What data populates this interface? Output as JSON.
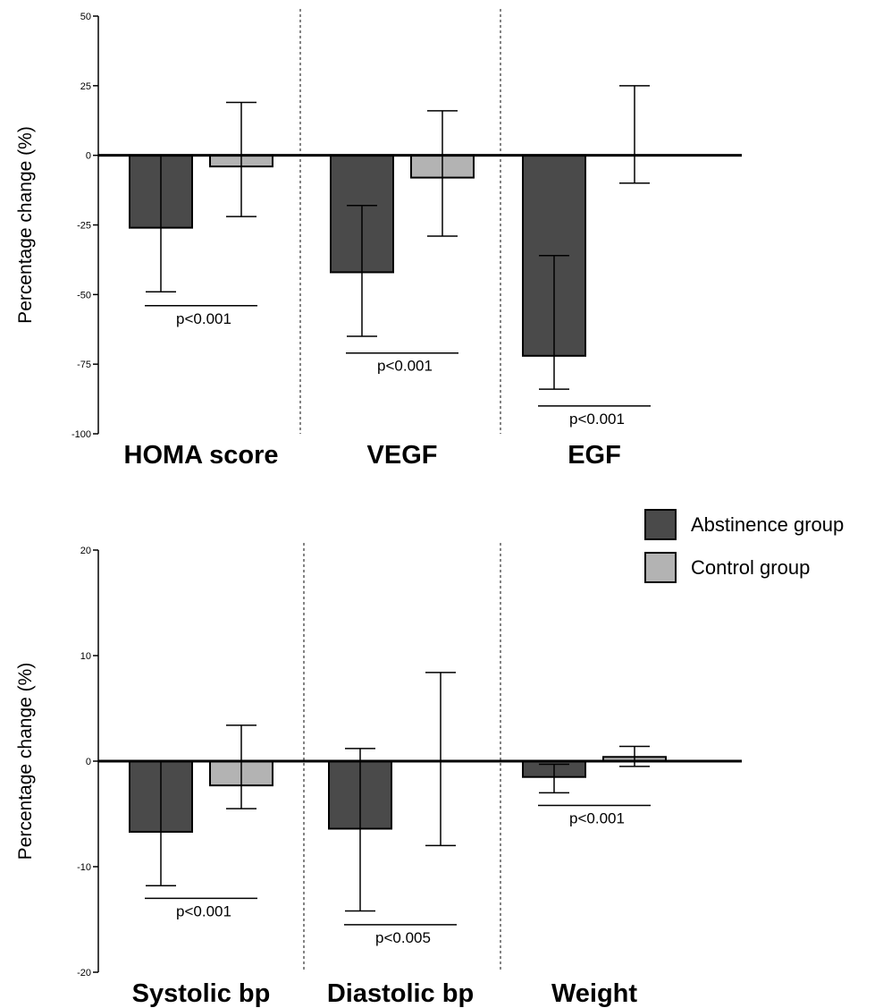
{
  "legend": {
    "items": [
      {
        "label": "Abstinence group",
        "color": "#4a4a4a"
      },
      {
        "label": "Control group",
        "color": "#b3b3b3"
      }
    ]
  },
  "chart_data": [
    {
      "type": "bar",
      "ylabel": "Percentage change (%)",
      "ylim": [
        -100,
        50
      ],
      "yticks": [
        50,
        25,
        0,
        -25,
        -50,
        -75,
        -100
      ],
      "categories": [
        "HOMA score",
        "VEGF",
        "EGF"
      ],
      "series": [
        {
          "name": "Abstinence group",
          "color": "#4a4a4a",
          "values": [
            -26,
            -42,
            -72
          ],
          "error_low": [
            -49,
            -65,
            -84
          ],
          "error_high": [
            0,
            -18,
            -36
          ]
        },
        {
          "name": "Control group",
          "color": "#b3b3b3",
          "values": [
            -4,
            -8,
            0
          ],
          "error_low": [
            -22,
            -29,
            -10
          ],
          "error_high": [
            19,
            16,
            25
          ]
        }
      ],
      "annotations": [
        {
          "category": 0,
          "text": "p<0.001",
          "y": -54
        },
        {
          "category": 1,
          "text": "p<0.001",
          "y": -71
        },
        {
          "category": 2,
          "text": "p<0.001",
          "y": -90
        }
      ]
    },
    {
      "type": "bar",
      "ylabel": "Percentage change (%)",
      "ylim": [
        -20,
        20
      ],
      "yticks": [
        20,
        10,
        0,
        -10,
        -20
      ],
      "categories": [
        "Systolic bp",
        "Diastolic bp",
        "Weight"
      ],
      "series": [
        {
          "name": "Abstinence group",
          "color": "#4a4a4a",
          "values": [
            -6.7,
            -6.4,
            -1.5
          ],
          "error_low": [
            -11.8,
            -14.2,
            -3.0
          ],
          "error_high": [
            0,
            1.2,
            -0.3
          ]
        },
        {
          "name": "Control group",
          "color": "#b3b3b3",
          "values": [
            -2.3,
            0,
            0.4
          ],
          "error_low": [
            -4.5,
            -8.0,
            -0.5
          ],
          "error_high": [
            3.4,
            8.4,
            1.4
          ]
        }
      ],
      "annotations": [
        {
          "category": 0,
          "text": "p<0.001",
          "y": -13
        },
        {
          "category": 1,
          "text": "p<0.005",
          "y": -15.5
        },
        {
          "category": 2,
          "text": "p<0.001",
          "y": -4.2
        }
      ]
    }
  ]
}
